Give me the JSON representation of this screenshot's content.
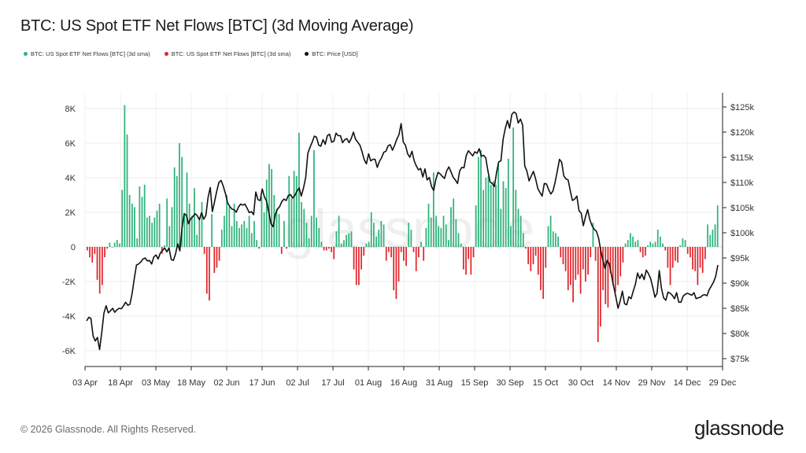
{
  "header": {
    "title": "BTC: US Spot ETF Net Flows [BTC] (3d Moving Average)"
  },
  "legend": [
    {
      "label": "BTC: US Spot ETF Net Flows [BTC] (3d sma)",
      "color": "#2db37a"
    },
    {
      "label": "BTC: US Spot ETF Net Flows [BTC] (3d sma)",
      "color": "#e0252b"
    },
    {
      "label": "BTC: Price [USD]",
      "color": "#111111"
    }
  ],
  "footer": {
    "copyright": "© 2026 Glassnode. All Rights Reserved.",
    "brand": "glassnode"
  },
  "watermark": "glassnode",
  "chart_data": {
    "type": "bar",
    "title": "BTC: US Spot ETF Net Flows [BTC] (3d Moving Average)",
    "x_ticks": [
      "03 Apr",
      "18 Apr",
      "03 May",
      "18 May",
      "02 Jun",
      "17 Jun",
      "02 Jul",
      "17 Jul",
      "01 Aug",
      "16 Aug",
      "31 Aug",
      "15 Sep",
      "30 Sep",
      "15 Oct",
      "30 Oct",
      "14 Nov",
      "29 Nov",
      "14 Dec",
      "29 Dec"
    ],
    "y_left_ticks": [
      "8K",
      "6K",
      "4K",
      "2K",
      "0",
      "-2K",
      "-4K",
      "-6K"
    ],
    "y_left_range": [
      -6000,
      8000
    ],
    "y_right_ticks": [
      "$125k",
      "$120k",
      "$115k",
      "$110k",
      "$105k",
      "$100k",
      "$95k",
      "$90k",
      "$85k",
      "$80k",
      "$75k"
    ],
    "y_right_range": [
      75000,
      125000
    ],
    "grid": true,
    "legend_position": "top-left",
    "series": [
      {
        "name": "BTC: US Spot ETF Net Flows [BTC] (3d sma)",
        "type": "bar",
        "color_positive": "#2db37a",
        "color_negative": "#e0252b",
        "values": [
          -200,
          -600,
          -900,
          -400,
          -1900,
          -2700,
          -2200,
          -600,
          -100,
          250,
          -30,
          250,
          400,
          200,
          3300,
          8200,
          6500,
          3000,
          2500,
          2300,
          500,
          3500,
          2900,
          3600,
          1700,
          1800,
          1400,
          1700,
          2100,
          2500,
          -400,
          100,
          2800,
          1200,
          2300,
          4600,
          4100,
          6000,
          5200,
          1900,
          4300,
          2500,
          1800,
          3400,
          700,
          1700,
          2600,
          -400,
          -2700,
          -3100,
          1900,
          -1500,
          -1200,
          -800,
          1000,
          1800,
          3000,
          2300,
          1200,
          2500,
          1500,
          1100,
          1300,
          1500,
          1100,
          1800,
          800,
          1500,
          400,
          -100,
          2900,
          2000,
          3900,
          4800,
          4500,
          3000,
          2200,
          1900,
          -400,
          1500,
          -100,
          4100,
          2800,
          4400,
          4100,
          6600,
          2600,
          2200,
          1400,
          500,
          1800,
          5600,
          1700,
          1100,
          300,
          -200,
          -200,
          -100,
          -300,
          -700,
          900,
          1800,
          200,
          400,
          700,
          800,
          900,
          -1300,
          -2200,
          -2200,
          -1300,
          -500,
          200,
          300,
          2000,
          1400,
          600,
          1000,
          1500,
          1300,
          -800,
          -300,
          -600,
          -2500,
          -3000,
          -2000,
          -300,
          -800,
          -1100,
          1400,
          1000,
          -300,
          -1400,
          -600,
          300,
          -800,
          1100,
          2500,
          1700,
          4300,
          1800,
          1200,
          1100,
          1800,
          1300,
          400,
          2300,
          2800,
          1600,
          800,
          200,
          -1300,
          -1600,
          -700,
          -1600,
          -600,
          2400,
          5200,
          5600,
          3300,
          4000,
          4100,
          3600,
          3800,
          3600,
          4800,
          2200,
          3800,
          3400,
          5100,
          1200,
          6900,
          3300,
          2200,
          1800,
          800,
          -100,
          -1000,
          -1400,
          -1000,
          -500,
          -1600,
          -2500,
          -3000,
          -1200,
          1200,
          1800,
          900,
          800,
          600,
          -600,
          -1000,
          -1400,
          -2500,
          -2200,
          -3200,
          -1900,
          -1600,
          -2700,
          -1300,
          -2000,
          -1600,
          -600,
          1400,
          -800,
          -5500,
          -4600,
          -2500,
          -3300,
          -3500,
          -1500,
          -2200,
          -2600,
          -2200,
          -1700,
          -900,
          200,
          400,
          800,
          600,
          300,
          400,
          -300,
          -600,
          -500,
          100,
          300,
          200,
          300,
          1000,
          600,
          200,
          -200,
          -1200,
          -2200,
          -1200,
          -800,
          -900,
          100,
          500,
          400,
          -400,
          -600,
          -1300,
          -1400,
          -2200,
          -1200,
          -1500,
          -700,
          1300,
          700,
          1000,
          1300,
          2400
        ]
      },
      {
        "name": "BTC: Price [USD]",
        "type": "line",
        "color": "#111111",
        "values": [
          82500,
          83200,
          83000,
          79500,
          78500,
          79200,
          76800,
          80200,
          84000,
          85500,
          84100,
          84500,
          85000,
          84200,
          84700,
          85000,
          84900,
          85500,
          86200,
          85600,
          85800,
          88000,
          90900,
          93600,
          93800,
          94200,
          94800,
          95000,
          94400,
          94500,
          93800,
          95200,
          95600,
          94800,
          96000,
          96500,
          97000,
          96200,
          97000,
          94700,
          94500,
          95800,
          97800,
          96400,
          101000,
          103800,
          103500,
          101800,
          102800,
          103200,
          103800,
          103400,
          102600,
          104000,
          102700,
          103500,
          107000,
          109000,
          104200,
          106200,
          108300,
          110000,
          110400,
          109300,
          107800,
          106000,
          105200,
          104700,
          104600,
          104100,
          105100,
          105700,
          105500,
          105700,
          104900,
          104000,
          104200,
          103600,
          108100,
          106600,
          106400,
          108700,
          107100,
          106300,
          104100,
          101800,
          101200,
          103700,
          104700,
          105200,
          106200,
          106700,
          106400,
          107400,
          107600,
          106900,
          107400,
          108300,
          108900,
          107300,
          108900,
          111000,
          115800,
          117000,
          118000,
          119200,
          119000,
          117400,
          117200,
          118500,
          117600,
          119300,
          119600,
          118000,
          118200,
          119800,
          119300,
          119300,
          117900,
          118500,
          118700,
          117900,
          118700,
          120000,
          118600,
          118000,
          117400,
          116100,
          114500,
          113700,
          115700,
          114300,
          114600,
          114600,
          113000,
          114200,
          114900,
          116000,
          116200,
          117300,
          117500,
          116400,
          117400,
          118600,
          119500,
          121700,
          118000,
          117400,
          115700,
          115000,
          116200,
          114300,
          113300,
          112500,
          112800,
          111100,
          112700,
          110500,
          111000,
          109200,
          108400,
          110600,
          112000,
          111700,
          111200,
          110800,
          112300,
          113100,
          112100,
          111000,
          110500,
          109800,
          112300,
          113000,
          112900,
          115300,
          116300,
          115800,
          115300,
          116100,
          115800,
          116700,
          115200,
          115400,
          114900,
          112300,
          110100,
          109800,
          109200,
          112000,
          114100,
          114300,
          118600,
          120700,
          122300,
          120800,
          123500,
          124000,
          123700,
          121800,
          122600,
          121400,
          113300,
          112200,
          110300,
          111300,
          112200,
          110700,
          108800,
          108000,
          107300,
          109800,
          109700,
          108600,
          107700,
          108300,
          110100,
          112300,
          114600,
          114000,
          111300,
          110700,
          110500,
          108300,
          106400,
          106700,
          107300,
          104400,
          103900,
          101400,
          103200,
          104600,
          102600,
          101400,
          100700,
          100300,
          99000,
          96500,
          94600,
          92900,
          94500,
          93800,
          91400,
          89300,
          87200,
          85000,
          86500,
          88400,
          85900,
          85700,
          87300,
          86900,
          88400,
          89800,
          92000,
          90900,
          91800,
          90700,
          92600,
          91900,
          90900,
          89200,
          87200,
          88000,
          92500,
          89000,
          87100,
          86600,
          88200,
          88000,
          87600,
          86900,
          88100,
          86200,
          86200,
          87400,
          87800,
          88000,
          87800,
          87600,
          88100,
          86900,
          87100,
          87200,
          87600,
          87700,
          87500,
          88700,
          89400,
          90200,
          91300,
          93600
        ]
      }
    ]
  }
}
